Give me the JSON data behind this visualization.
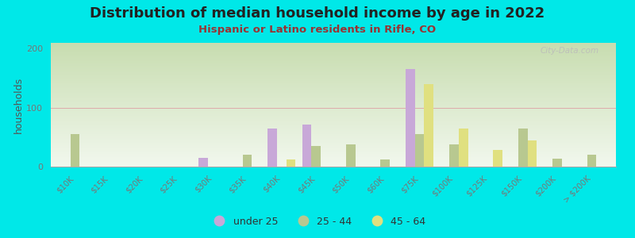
{
  "title": "Distribution of median household income by age in 2022",
  "subtitle": "Hispanic or Latino residents in Rifle, CO",
  "ylabel": "households",
  "background_color": "#00e8e8",
  "grad_top": "#c8ddb0",
  "grad_bottom": "#f2f8ee",
  "watermark": "City-Data.com",
  "categories": [
    "$10K",
    "$15K",
    "$20K",
    "$25K",
    "$30K",
    "$35K",
    "$40K",
    "$45K",
    "$50K",
    "$60K",
    "$75K",
    "$100K",
    "$125K",
    "$150K",
    "$200K",
    "> $200K"
  ],
  "under25": [
    0,
    0,
    0,
    0,
    15,
    0,
    65,
    72,
    0,
    0,
    165,
    0,
    0,
    0,
    0,
    0
  ],
  "age2544": [
    55,
    0,
    0,
    0,
    0,
    20,
    0,
    35,
    38,
    12,
    55,
    38,
    0,
    65,
    14,
    20
  ],
  "age4564": [
    0,
    0,
    0,
    0,
    0,
    0,
    12,
    0,
    0,
    0,
    140,
    65,
    28,
    45,
    0,
    0
  ],
  "color_under25": "#c8a8d8",
  "color_2544": "#b8c890",
  "color_4564": "#e0e080",
  "ylim_max": 210,
  "yticks": [
    0,
    100,
    200
  ],
  "title_color": "#222222",
  "subtitle_color": "#993333",
  "ylabel_color": "#555555",
  "tick_color": "#777777",
  "watermark_color": "#bbbbbb",
  "hline_color": "#ddaaaa",
  "bar_width": 0.27
}
